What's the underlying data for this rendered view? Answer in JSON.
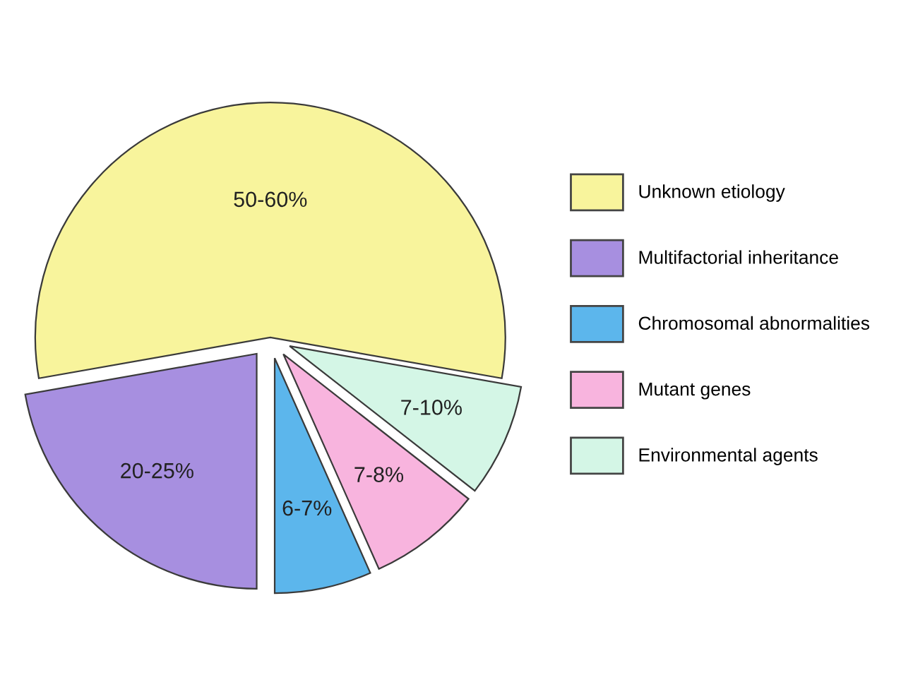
{
  "chart_data": {
    "type": "pie",
    "categories": [
      "Unknown etiology",
      "Multifactorial inheritance",
      "Chromosomal abnormalities",
      "Mutant genes",
      "Environmental agents"
    ],
    "values": [
      50,
      20,
      6,
      7,
      7
    ],
    "value_labels": [
      "50-60%",
      "20-25%",
      "6-7%",
      "7-8%",
      "7-10%"
    ],
    "colors": [
      "#f8f49c",
      "#a78fe0",
      "#5cb6ec",
      "#f8b4de",
      "#d4f6e6"
    ],
    "legend": "right"
  }
}
